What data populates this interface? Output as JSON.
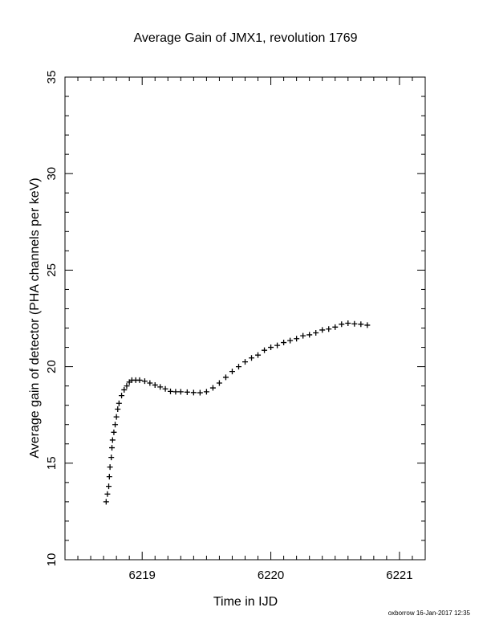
{
  "chart_data": {
    "type": "scatter",
    "title": "Average Gain of JMX1, revolution 1769",
    "xlabel": "Time in IJD",
    "ylabel": "Average gain of detector (PHA channels per keV)",
    "xlim": [
      6218.4,
      6221.2
    ],
    "ylim": [
      10,
      35
    ],
    "xticks": [
      6219,
      6220,
      6221
    ],
    "yticks": [
      10,
      15,
      20,
      25,
      30,
      35
    ],
    "x_minor_step": 0.1,
    "y_minor_step": 1,
    "marker": "plus",
    "grid": false,
    "series": [
      {
        "color": "#000000",
        "points": [
          [
            6218.72,
            13.0
          ],
          [
            6218.73,
            13.4
          ],
          [
            6218.74,
            13.8
          ],
          [
            6218.745,
            14.3
          ],
          [
            6218.75,
            14.8
          ],
          [
            6218.76,
            15.3
          ],
          [
            6218.765,
            15.8
          ],
          [
            6218.77,
            16.2
          ],
          [
            6218.78,
            16.6
          ],
          [
            6218.79,
            17.0
          ],
          [
            6218.8,
            17.4
          ],
          [
            6218.81,
            17.8
          ],
          [
            6218.82,
            18.1
          ],
          [
            6218.84,
            18.5
          ],
          [
            6218.86,
            18.8
          ],
          [
            6218.88,
            19.0
          ],
          [
            6218.9,
            19.2
          ],
          [
            6218.92,
            19.3
          ],
          [
            6218.95,
            19.3
          ],
          [
            6218.98,
            19.3
          ],
          [
            6219.02,
            19.25
          ],
          [
            6219.06,
            19.15
          ],
          [
            6219.1,
            19.05
          ],
          [
            6219.14,
            18.95
          ],
          [
            6219.18,
            18.85
          ],
          [
            6219.22,
            18.72
          ],
          [
            6219.26,
            18.7
          ],
          [
            6219.3,
            18.7
          ],
          [
            6219.35,
            18.68
          ],
          [
            6219.4,
            18.66
          ],
          [
            6219.45,
            18.65
          ],
          [
            6219.5,
            18.7
          ],
          [
            6219.55,
            18.9
          ],
          [
            6219.6,
            19.15
          ],
          [
            6219.65,
            19.45
          ],
          [
            6219.7,
            19.75
          ],
          [
            6219.75,
            20.0
          ],
          [
            6219.8,
            20.25
          ],
          [
            6219.85,
            20.45
          ],
          [
            6219.9,
            20.6
          ],
          [
            6219.95,
            20.85
          ],
          [
            6220.0,
            21.0
          ],
          [
            6220.05,
            21.1
          ],
          [
            6220.1,
            21.25
          ],
          [
            6220.15,
            21.35
          ],
          [
            6220.2,
            21.45
          ],
          [
            6220.25,
            21.6
          ],
          [
            6220.3,
            21.65
          ],
          [
            6220.35,
            21.75
          ],
          [
            6220.4,
            21.9
          ],
          [
            6220.45,
            21.95
          ],
          [
            6220.5,
            22.05
          ],
          [
            6220.55,
            22.2
          ],
          [
            6220.6,
            22.25
          ],
          [
            6220.65,
            22.22
          ],
          [
            6220.7,
            22.2
          ],
          [
            6220.75,
            22.15
          ]
        ]
      }
    ]
  },
  "footer": {
    "credit": "oxborrow 16-Jan-2017 12:35"
  }
}
